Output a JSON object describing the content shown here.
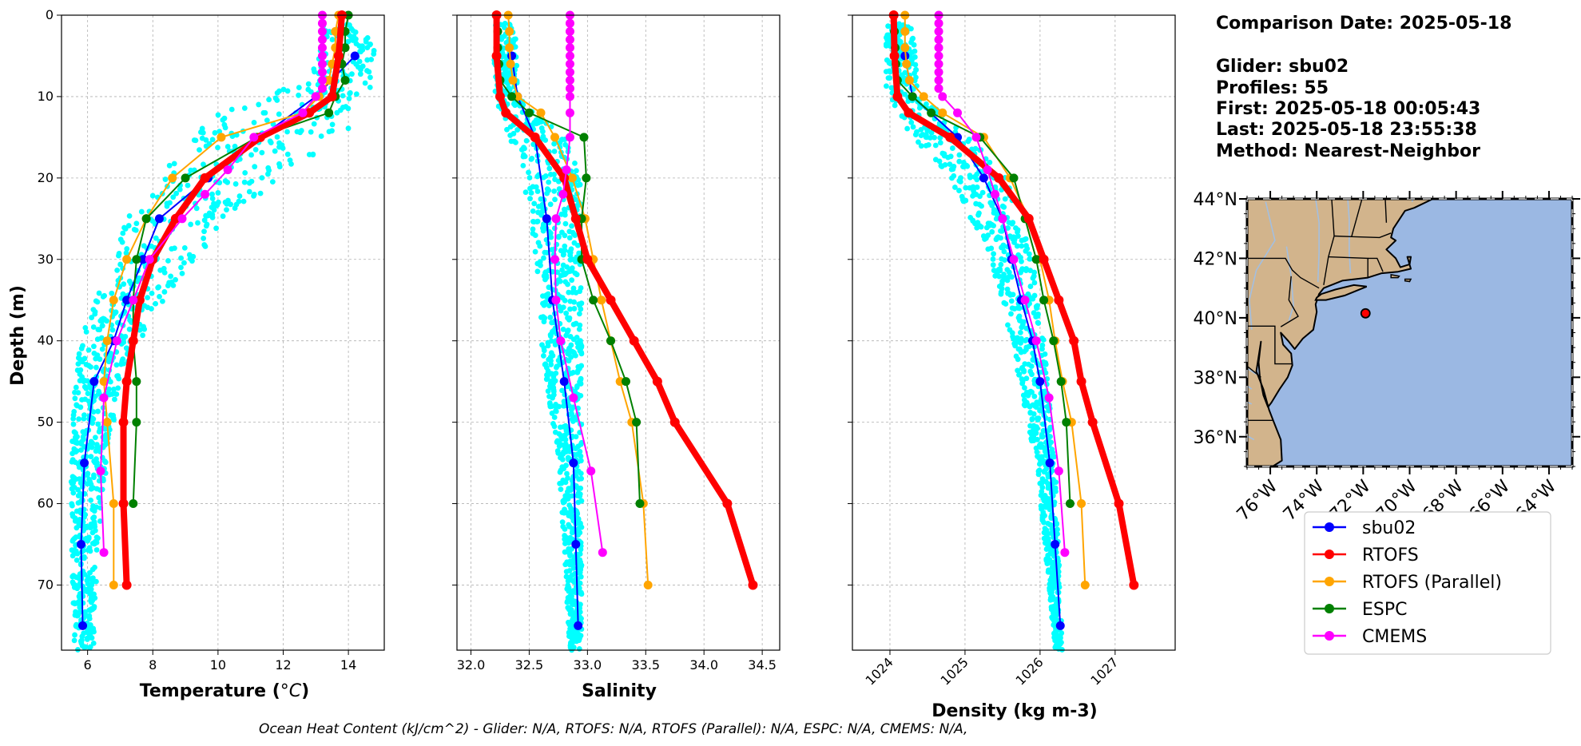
{
  "info": {
    "comparison_date": "Comparison Date: 2025-05-18",
    "glider": "Glider: sbu02",
    "profiles": "Profiles: 55",
    "first": "First: 2025-05-18 00:05:43",
    "last": "Last: 2025-05-18 23:55:38",
    "method": "Method: Nearest-Neighbor"
  },
  "footer": "Ocean Heat Content (kJ/cm^2) - Glider: N/A,  RTOFS: N/A,  RTOFS (Parallel): N/A,  ESPC: N/A,  CMEMS: N/A,",
  "colors": {
    "sbu02": "#0000ff",
    "RTOFS": "#ff0000",
    "RTOFS (Parallel)": "#ffa500",
    "ESPC": "#008000",
    "CMEMS": "#ff00ff",
    "glider_scatter": "#00ffff",
    "land": "#d2b48c",
    "ocean": "#9bb8e3",
    "rivers": "#a3bfe0"
  },
  "legend": [
    "sbu02",
    "RTOFS",
    "RTOFS (Parallel)",
    "ESPC",
    "CMEMS"
  ],
  "map": {
    "lon_ticks": [
      "76°W",
      "74°W",
      "72°W",
      "70°W",
      "68°W",
      "66°W",
      "64°W"
    ],
    "lat_ticks": [
      "44°N",
      "42°N",
      "40°N",
      "38°N",
      "36°N"
    ],
    "lon_values": [
      -76,
      -74,
      -72,
      -70,
      -68,
      -66,
      -64
    ],
    "lat_values": [
      44,
      42,
      40,
      38,
      36
    ],
    "extent": {
      "lon": [
        -77,
        -63
      ],
      "lat": [
        35,
        44
      ]
    },
    "glider_position": {
      "lon": -71.9,
      "lat": 40.15
    }
  },
  "chart_data": [
    {
      "type": "line",
      "xlabel": "Temperature (°C)",
      "ylabel": "Depth (m)",
      "xlim": [
        5.2,
        15.1
      ],
      "ylim": [
        78,
        0
      ],
      "xticks": [
        6,
        8,
        10,
        12,
        14
      ],
      "yticks": [
        0,
        10,
        20,
        30,
        40,
        50,
        60,
        70
      ],
      "grid": true,
      "glider_scatter_envelope": [
        {
          "depth": 2,
          "min": 13.2,
          "max": 14.8
        },
        {
          "depth": 8,
          "min": 12.8,
          "max": 14.8
        },
        {
          "depth": 12,
          "min": 10.0,
          "max": 14.4
        },
        {
          "depth": 15,
          "min": 9.2,
          "max": 13.8
        },
        {
          "depth": 20,
          "min": 8.2,
          "max": 12.0
        },
        {
          "depth": 25,
          "min": 7.2,
          "max": 10.2
        },
        {
          "depth": 30,
          "min": 6.8,
          "max": 9.4
        },
        {
          "depth": 35,
          "min": 6.2,
          "max": 8.4
        },
        {
          "depth": 40,
          "min": 5.8,
          "max": 7.6
        },
        {
          "depth": 45,
          "min": 5.6,
          "max": 7.0
        },
        {
          "depth": 55,
          "min": 5.5,
          "max": 6.6
        },
        {
          "depth": 65,
          "min": 5.5,
          "max": 6.3
        },
        {
          "depth": 78,
          "min": 5.6,
          "max": 6.2
        }
      ],
      "series": [
        {
          "name": "sbu02",
          "depth": [
            5,
            10,
            15,
            20,
            25,
            30,
            35,
            40,
            45,
            55,
            65,
            75
          ],
          "values": [
            14.2,
            13.0,
            11.3,
            9.7,
            8.2,
            7.7,
            7.2,
            6.8,
            6.2,
            5.9,
            5.8,
            5.85
          ]
        },
        {
          "name": "RTOFS",
          "depth": [
            0,
            5,
            10,
            12,
            15,
            20,
            25,
            30,
            35,
            40,
            45,
            50,
            60,
            70
          ],
          "values": [
            13.8,
            13.7,
            13.5,
            12.8,
            11.3,
            9.6,
            8.7,
            8.0,
            7.6,
            7.4,
            7.2,
            7.1,
            7.1,
            7.2
          ]
        },
        {
          "name": "RTOFS (Parallel)",
          "depth": [
            0,
            2,
            4,
            6,
            8,
            10,
            12,
            15,
            20,
            25,
            30,
            35,
            40,
            45,
            50,
            60,
            70
          ],
          "values": [
            13.7,
            13.6,
            13.6,
            13.5,
            13.4,
            13.1,
            12.6,
            10.1,
            8.6,
            7.8,
            7.2,
            6.8,
            6.6,
            6.5,
            6.6,
            6.8,
            6.8
          ]
        },
        {
          "name": "ESPC",
          "depth": [
            0,
            2,
            4,
            6,
            8,
            10,
            12,
            15,
            20,
            25,
            30,
            35,
            40,
            45,
            50,
            60
          ],
          "values": [
            14.0,
            13.9,
            13.9,
            13.8,
            13.9,
            13.6,
            13.4,
            11.2,
            9.0,
            7.8,
            7.5,
            7.4,
            7.4,
            7.5,
            7.5,
            7.4
          ]
        },
        {
          "name": "CMEMS",
          "depth": [
            0,
            1,
            2,
            3,
            4,
            5,
            6,
            7,
            8,
            9,
            10,
            12,
            15,
            19,
            22,
            25,
            30,
            35,
            40,
            47,
            56,
            66
          ],
          "values": [
            13.2,
            13.2,
            13.2,
            13.2,
            13.2,
            13.2,
            13.2,
            13.2,
            13.2,
            13.2,
            13.0,
            12.6,
            11.1,
            10.3,
            9.6,
            8.9,
            7.9,
            7.4,
            6.9,
            6.5,
            6.4,
            6.5
          ]
        }
      ]
    },
    {
      "type": "line",
      "xlabel": "Salinity",
      "xlim": [
        31.88,
        34.65
      ],
      "ylim": [
        78,
        0
      ],
      "xticks": [
        32.0,
        32.5,
        33.0,
        33.5,
        34.0,
        34.5
      ],
      "yticks": [
        0,
        10,
        20,
        30,
        40,
        50,
        60,
        70
      ],
      "grid": true,
      "glider_scatter_envelope": [
        {
          "depth": 2,
          "min": 32.2,
          "max": 32.4
        },
        {
          "depth": 10,
          "min": 32.2,
          "max": 32.4
        },
        {
          "depth": 15,
          "min": 32.3,
          "max": 32.8
        },
        {
          "depth": 20,
          "min": 32.45,
          "max": 32.95
        },
        {
          "depth": 30,
          "min": 32.55,
          "max": 32.95
        },
        {
          "depth": 40,
          "min": 32.6,
          "max": 32.95
        },
        {
          "depth": 55,
          "min": 32.75,
          "max": 32.95
        },
        {
          "depth": 78,
          "min": 32.85,
          "max": 32.95
        }
      ],
      "series": [
        {
          "name": "sbu02",
          "depth": [
            5,
            10,
            15,
            25,
            35,
            45,
            55,
            65,
            75
          ],
          "values": [
            32.35,
            32.4,
            32.55,
            32.65,
            32.7,
            32.8,
            32.88,
            32.9,
            32.92
          ]
        },
        {
          "name": "RTOFS",
          "depth": [
            0,
            5,
            10,
            12,
            15,
            20,
            25,
            30,
            35,
            40,
            45,
            50,
            60,
            70
          ],
          "values": [
            32.22,
            32.22,
            32.25,
            32.3,
            32.55,
            32.8,
            32.9,
            33.0,
            33.2,
            33.4,
            33.6,
            33.75,
            34.2,
            34.42
          ]
        },
        {
          "name": "RTOFS (Parallel)",
          "depth": [
            0,
            2,
            4,
            6,
            8,
            10,
            12,
            15,
            20,
            25,
            30,
            35,
            40,
            45,
            50,
            60,
            70
          ],
          "values": [
            32.32,
            32.33,
            32.33,
            32.34,
            32.36,
            32.4,
            32.6,
            32.72,
            32.87,
            32.98,
            33.05,
            33.12,
            33.2,
            33.28,
            33.38,
            33.48,
            33.52
          ]
        },
        {
          "name": "ESPC",
          "depth": [
            0,
            2,
            4,
            6,
            8,
            10,
            12,
            15,
            20,
            25,
            30,
            35,
            40,
            45,
            50,
            60
          ],
          "values": [
            32.22,
            32.23,
            32.23,
            32.24,
            32.25,
            32.35,
            32.5,
            32.97,
            32.99,
            32.95,
            32.95,
            33.05,
            33.2,
            33.33,
            33.42,
            33.45
          ]
        },
        {
          "name": "CMEMS",
          "depth": [
            0,
            1,
            2,
            3,
            4,
            5,
            6,
            7,
            8,
            9,
            10,
            12,
            15,
            19,
            22,
            25,
            30,
            35,
            40,
            47,
            56,
            66
          ],
          "values": [
            32.85,
            32.85,
            32.85,
            32.85,
            32.85,
            32.85,
            32.85,
            32.85,
            32.85,
            32.85,
            32.85,
            32.85,
            32.85,
            32.82,
            32.79,
            32.73,
            32.72,
            32.73,
            32.77,
            32.88,
            33.03,
            33.13
          ]
        }
      ]
    },
    {
      "type": "line",
      "xlabel": "Density (kg m-3)",
      "xlim": [
        1023.5,
        1027.8
      ],
      "ylim": [
        78,
        0
      ],
      "xticks": [
        1024,
        1025,
        1026,
        1027
      ],
      "yticks": [
        0,
        10,
        20,
        30,
        40,
        50,
        60,
        70
      ],
      "grid": true,
      "glider_scatter_envelope": [
        {
          "depth": 2,
          "min": 1023.95,
          "max": 1024.3
        },
        {
          "depth": 10,
          "min": 1023.95,
          "max": 1024.4
        },
        {
          "depth": 15,
          "min": 1024.3,
          "max": 1025.1
        },
        {
          "depth": 20,
          "min": 1024.8,
          "max": 1025.55
        },
        {
          "depth": 30,
          "min": 1025.35,
          "max": 1025.9
        },
        {
          "depth": 40,
          "min": 1025.6,
          "max": 1026.05
        },
        {
          "depth": 55,
          "min": 1025.95,
          "max": 1026.2
        },
        {
          "depth": 78,
          "min": 1026.2,
          "max": 1026.3
        }
      ],
      "series": [
        {
          "name": "sbu02",
          "depth": [
            5,
            10,
            15,
            20,
            25,
            30,
            35,
            40,
            45,
            55,
            65,
            75
          ],
          "values": [
            1024.2,
            1024.3,
            1024.9,
            1025.25,
            1025.5,
            1025.62,
            1025.75,
            1025.9,
            1026.0,
            1026.13,
            1026.2,
            1026.27
          ]
        },
        {
          "name": "RTOFS",
          "depth": [
            0,
            5,
            10,
            12,
            15,
            20,
            25,
            30,
            35,
            40,
            45,
            50,
            60,
            70
          ],
          "values": [
            1024.05,
            1024.06,
            1024.1,
            1024.25,
            1024.8,
            1025.45,
            1025.85,
            1026.05,
            1026.25,
            1026.45,
            1026.55,
            1026.7,
            1027.05,
            1027.25
          ]
        },
        {
          "name": "RTOFS (Parallel)",
          "depth": [
            0,
            2,
            4,
            6,
            8,
            10,
            12,
            15,
            20,
            25,
            30,
            35,
            40,
            45,
            50,
            60,
            70
          ],
          "values": [
            1024.2,
            1024.2,
            1024.2,
            1024.22,
            1024.26,
            1024.45,
            1024.7,
            1025.25,
            1025.6,
            1025.85,
            1026.0,
            1026.12,
            1026.2,
            1026.3,
            1026.42,
            1026.55,
            1026.6
          ]
        },
        {
          "name": "ESPC",
          "depth": [
            0,
            2,
            4,
            6,
            8,
            10,
            12,
            15,
            20,
            25,
            30,
            35,
            40,
            45,
            50,
            60
          ],
          "values": [
            1024.05,
            1024.06,
            1024.07,
            1024.08,
            1024.1,
            1024.3,
            1024.55,
            1025.2,
            1025.65,
            1025.8,
            1025.95,
            1026.05,
            1026.18,
            1026.28,
            1026.35,
            1026.4
          ]
        },
        {
          "name": "CMEMS",
          "depth": [
            0,
            1,
            2,
            3,
            4,
            5,
            6,
            7,
            8,
            9,
            10,
            12,
            15,
            19,
            22,
            25,
            30,
            35,
            40,
            47,
            56,
            66
          ],
          "values": [
            1024.65,
            1024.65,
            1024.65,
            1024.65,
            1024.65,
            1024.65,
            1024.65,
            1024.65,
            1024.65,
            1024.65,
            1024.7,
            1024.9,
            1025.15,
            1025.3,
            1025.4,
            1025.5,
            1025.65,
            1025.8,
            1025.95,
            1026.12,
            1026.25,
            1026.33
          ]
        }
      ]
    }
  ]
}
